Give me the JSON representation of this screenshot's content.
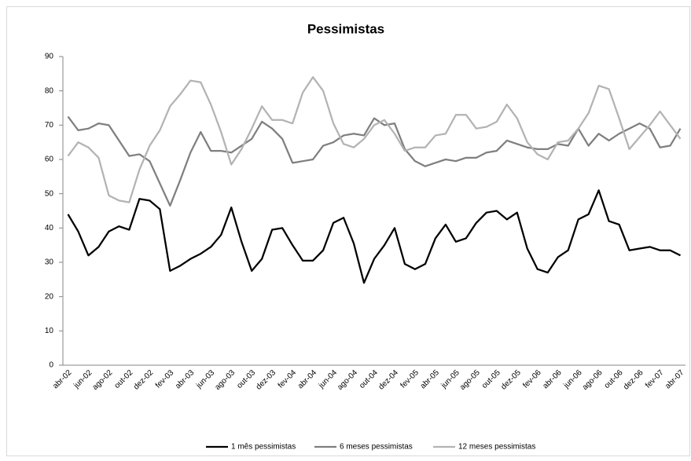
{
  "chart_data": {
    "type": "line",
    "title": "Pessimistas",
    "categories": [
      "abr-02",
      null,
      "jun-02",
      null,
      "ago-02",
      null,
      "out-02",
      null,
      "dez-02",
      null,
      "fev-03",
      null,
      "abr-03",
      null,
      "jun-03",
      null,
      "ago-03",
      null,
      "out-03",
      null,
      "dez-03",
      null,
      "fev-04",
      null,
      "abr-04",
      null,
      "jun-04",
      null,
      "ago-04",
      null,
      "out-04",
      null,
      "dez-04",
      null,
      "fev-05",
      null,
      "abr-05",
      null,
      "jun-05",
      null,
      "ago-05",
      null,
      "out-05",
      null,
      "dez-05",
      null,
      "fev-06",
      null,
      "abr-06",
      null,
      "jun-06",
      null,
      "ago-06",
      null,
      "out-06",
      null,
      "dez-06",
      null,
      "fev-07",
      null,
      "abr-07"
    ],
    "series": [
      {
        "name": "1 mês pessimistas",
        "color": "#000000",
        "values": [
          44,
          39,
          32,
          34.5,
          39,
          40.5,
          39.5,
          48.5,
          48,
          45.5,
          27.5,
          29,
          31,
          32.5,
          34.5,
          38,
          46,
          36,
          27.5,
          31,
          39.5,
          40,
          35,
          30.5,
          30.5,
          33.5,
          41.5,
          43,
          35.5,
          24,
          31,
          35,
          40,
          29.5,
          28,
          29.5,
          37,
          41,
          36,
          37,
          41.5,
          44.5,
          45,
          42.5,
          44.5,
          34,
          28,
          27,
          31.5,
          33.5,
          42.5,
          44,
          51,
          42,
          41,
          33.5,
          34,
          34.5,
          33.5,
          33.5,
          32
        ]
      },
      {
        "name": "6 meses pessimistas",
        "color": "#7f7f7f",
        "values": [
          72.5,
          68.5,
          69,
          70.5,
          70,
          65.5,
          61,
          61.5,
          59.5,
          53,
          46.5,
          54,
          62,
          68,
          62.5,
          62.5,
          62,
          64,
          66,
          71,
          69,
          66,
          59,
          59.5,
          60,
          64,
          65,
          67,
          67.5,
          67,
          72,
          70,
          70.5,
          63,
          59.5,
          58,
          59,
          60,
          59.5,
          60.5,
          60.5,
          62,
          62.5,
          65.5,
          64.5,
          63.5,
          63,
          63,
          64.5,
          64,
          69,
          64,
          67.5,
          65.5,
          67.5,
          69,
          70.5,
          69,
          63.5,
          64,
          69
        ]
      },
      {
        "name": "12 meses pessimistas",
        "color": "#b3b3b3",
        "values": [
          61,
          65,
          63.5,
          60.5,
          49.5,
          48,
          47.5,
          57,
          64,
          68.5,
          75.5,
          79,
          83,
          82.5,
          76,
          68,
          58.5,
          63,
          69,
          75.5,
          71.5,
          71.5,
          70.5,
          79.5,
          84,
          80,
          70.5,
          64.5,
          63.5,
          66,
          70,
          71.5,
          67.5,
          62.5,
          63.5,
          63.5,
          67,
          67.5,
          73,
          73,
          69,
          69.5,
          71,
          76,
          72,
          65,
          61.5,
          60,
          65,
          65.5,
          69,
          73.5,
          81.5,
          80.5,
          72,
          63,
          66.5,
          70,
          74,
          70,
          66
        ]
      }
    ],
    "ylim": [
      0,
      90
    ],
    "yticks": [
      0,
      10,
      20,
      30,
      40,
      50,
      60,
      70,
      80,
      90
    ],
    "grid": false,
    "legend": "bottom"
  }
}
